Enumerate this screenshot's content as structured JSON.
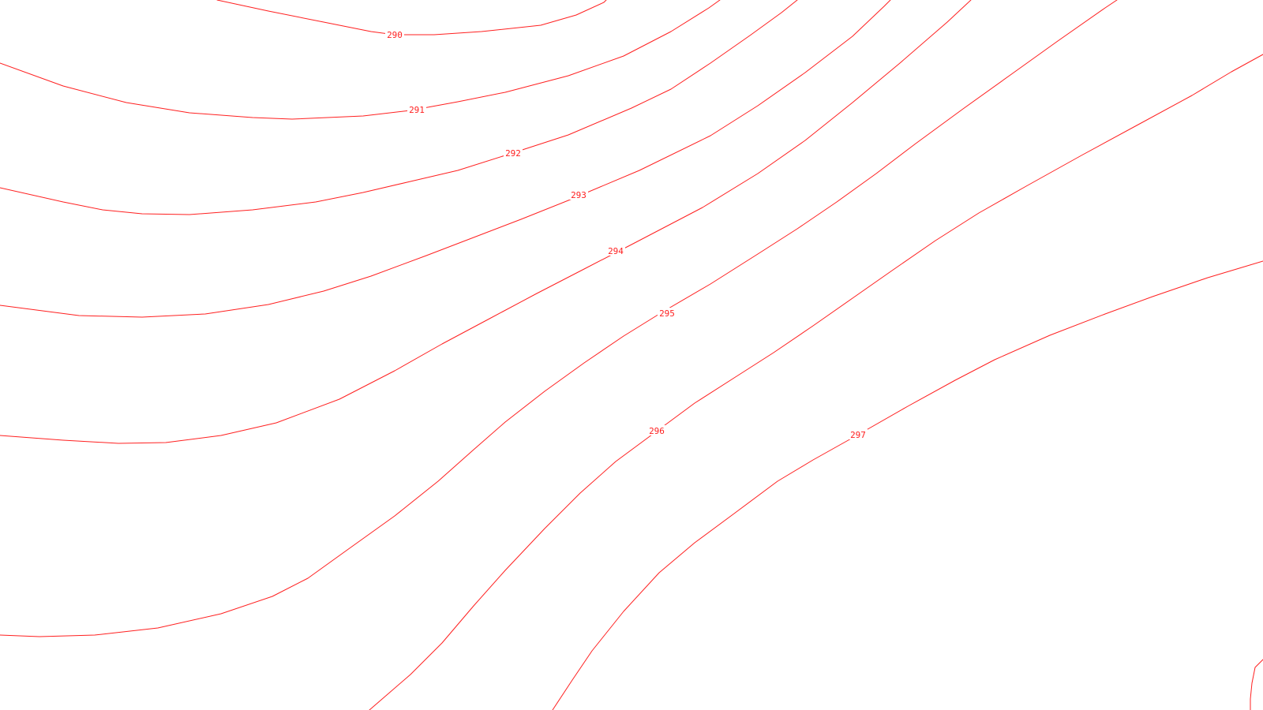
{
  "colors": {
    "background": "#ffffff",
    "contour": "#ff2020"
  },
  "contours": [
    {
      "elevation": 290,
      "label": "290"
    },
    {
      "elevation": 291,
      "label": "291"
    },
    {
      "elevation": 292,
      "label": "292"
    },
    {
      "elevation": 293,
      "label": "293"
    },
    {
      "elevation": 294,
      "label": "294"
    },
    {
      "elevation": 295,
      "label": "295"
    },
    {
      "elevation": 296,
      "label": "296"
    },
    {
      "elevation": 297,
      "label": "297"
    }
  ]
}
